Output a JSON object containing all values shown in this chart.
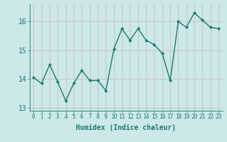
{
  "x": [
    0,
    1,
    2,
    3,
    4,
    5,
    6,
    7,
    8,
    9,
    10,
    11,
    12,
    13,
    14,
    15,
    16,
    17,
    18,
    19,
    20,
    21,
    22,
    23
  ],
  "y": [
    14.05,
    13.85,
    14.5,
    13.9,
    13.25,
    13.85,
    14.3,
    13.95,
    13.95,
    13.6,
    15.05,
    15.75,
    15.35,
    15.75,
    15.35,
    15.2,
    14.9,
    13.95,
    16.0,
    15.8,
    16.3,
    16.05,
    15.8,
    15.75
  ],
  "xlabel": "Humidex (Indice chaleur)",
  "line_color": "#1a7a6e",
  "bg_color": "#cce8e8",
  "grid_color": "#c8b8b8",
  "xlim": [
    -0.5,
    23.5
  ],
  "ylim": [
    12.9,
    16.6
  ],
  "yticks": [
    13,
    14,
    15,
    16
  ],
  "xticks": [
    0,
    1,
    2,
    3,
    4,
    5,
    6,
    7,
    8,
    9,
    10,
    11,
    12,
    13,
    14,
    15,
    16,
    17,
    18,
    19,
    20,
    21,
    22,
    23
  ],
  "marker": "D",
  "markersize": 2.0,
  "linewidth": 1.0,
  "tick_fontsize": 5.5,
  "xlabel_fontsize": 7,
  "ytick_fontsize": 7
}
